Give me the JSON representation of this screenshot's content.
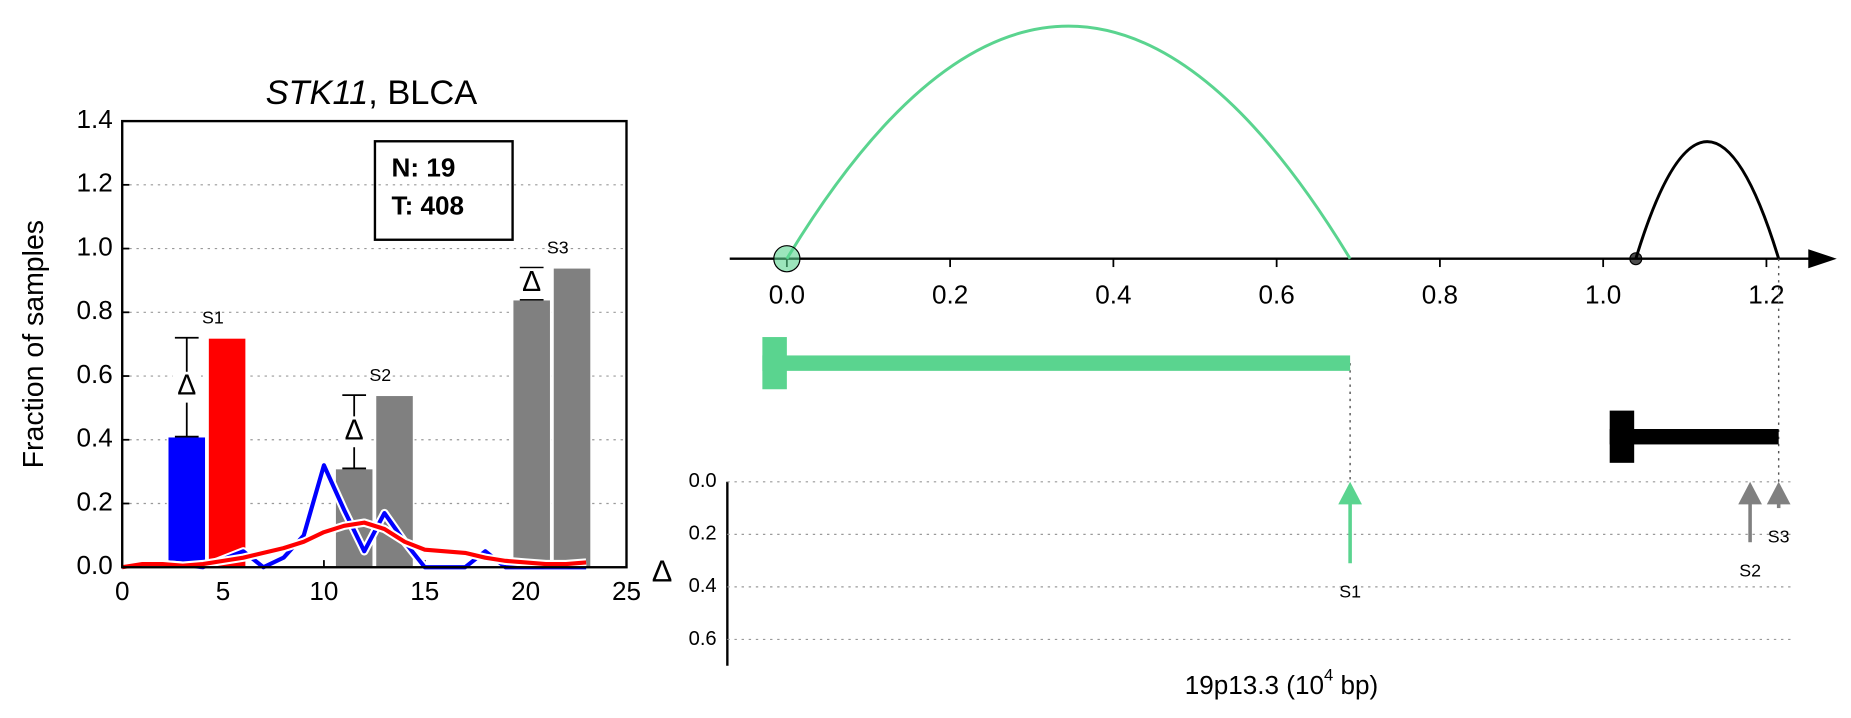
{
  "chart_data": [
    {
      "type": "bar",
      "title_parts": [
        "STK11",
        ", BLCA"
      ],
      "ylabel": "Fraction of samples",
      "annotation": [
        "N: 19",
        "T: 408"
      ],
      "xlim": [
        0,
        25
      ],
      "xticks": [
        0,
        5,
        10,
        15,
        20,
        25
      ],
      "ylim": [
        0,
        1.4
      ],
      "yticks": [
        {
          "value": 0,
          "label": "0.0"
        },
        0.2,
        0.4,
        0.6,
        0.8,
        {
          "value": 1,
          "label": "1.0"
        },
        1.2,
        1.4
      ],
      "grid": true,
      "bars": {
        "x": [
          3.2,
          5.2,
          11.5,
          13.5,
          20.3,
          22.3
        ],
        "values": [
          0.41,
          0.72,
          0.31,
          0.54,
          0.84,
          0.94
        ],
        "colors": [
          "#0000ff",
          "#ff0000",
          "#808080",
          "#808080",
          "#808080",
          "#808080"
        ]
      },
      "groups": [
        "S1",
        "S2",
        "S3"
      ],
      "delta_symbol": "Δ",
      "series": [
        {
          "color": "#0000ff",
          "x": [
            0,
            2,
            4,
            6,
            7,
            8,
            9,
            10,
            11,
            12,
            13,
            14,
            15,
            16,
            17,
            18,
            19,
            20,
            21,
            22,
            23
          ],
          "values": [
            0,
            0.01,
            0,
            0.05,
            0,
            0.03,
            0.1,
            0.32,
            0.18,
            0.05,
            0.17,
            0.08,
            0,
            0,
            0,
            0.05,
            0,
            0,
            0,
            0,
            0
          ]
        },
        {
          "color": "#ff0000",
          "x": [
            0,
            1,
            2,
            3,
            4,
            5,
            6,
            7,
            8,
            9,
            10,
            11,
            12,
            13,
            14,
            15,
            16,
            17,
            18,
            19,
            20,
            21,
            22,
            23
          ],
          "values": [
            0,
            0.01,
            0.01,
            0.005,
            0.01,
            0.02,
            0.03,
            0.045,
            0.06,
            0.08,
            0.11,
            0.13,
            0.14,
            0.12,
            0.08,
            0.055,
            0.05,
            0.045,
            0.03,
            0.02,
            0.015,
            0.01,
            0.01,
            0.015
          ]
        }
      ]
    },
    {
      "type": "arc",
      "xlim": [
        -0.07,
        1.26
      ],
      "xticks": [
        {
          "value": 0,
          "label": "0.0"
        },
        0.2,
        0.4,
        0.6,
        0.8,
        {
          "value": 1,
          "label": "1.0"
        },
        1.2
      ],
      "arcs": [
        {
          "start": 0,
          "end": 0.69,
          "color": "#5ad48f"
        },
        {
          "start": 1.04,
          "end": 1.215,
          "color": "#000000"
        }
      ],
      "genes": [
        {
          "start": -0.03,
          "end": 0.69,
          "color": "#5ad48f"
        },
        {
          "start": 1.008,
          "end": 1.215,
          "color": "#000000"
        }
      ],
      "arrows": {
        "labels": [
          "S1",
          "S2",
          "S3"
        ],
        "x": [
          0.69,
          1.18,
          1.215
        ],
        "values": [
          0.31,
          0.23,
          0.1
        ],
        "colors": [
          "#5ad48f",
          "#808080",
          "#808080"
        ]
      },
      "ylabel": "Δ",
      "ylim": [
        0,
        0.7
      ],
      "yticks": [
        {
          "value": 0,
          "label": "0.0"
        },
        0.2,
        0.4,
        0.6
      ],
      "xlabel_parts": [
        "19p13.3 (10",
        "4",
        " bp)"
      ]
    }
  ]
}
